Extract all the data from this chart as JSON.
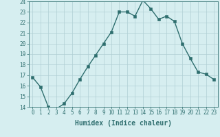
{
  "x": [
    0,
    1,
    2,
    3,
    4,
    5,
    6,
    7,
    8,
    9,
    10,
    11,
    12,
    13,
    14,
    15,
    16,
    17,
    18,
    19,
    20,
    21,
    22,
    23
  ],
  "y": [
    16.8,
    15.9,
    14.0,
    13.8,
    14.3,
    15.3,
    16.6,
    17.8,
    18.9,
    20.0,
    21.1,
    23.0,
    23.0,
    22.6,
    24.1,
    23.3,
    22.3,
    22.6,
    22.1,
    20.0,
    18.6,
    17.3,
    17.1,
    16.6
  ],
  "line_color": "#2e6e6e",
  "marker_color": "#2e6e6e",
  "bg_color": "#d6eef0",
  "grid_color": "#b0cfd4",
  "axis_color": "#2e6e6e",
  "xlabel": "Humidex (Indice chaleur)",
  "ylim": [
    14,
    24
  ],
  "yticks": [
    14,
    15,
    16,
    17,
    18,
    19,
    20,
    21,
    22,
    23,
    24
  ],
  "xticks": [
    0,
    1,
    2,
    3,
    4,
    5,
    6,
    7,
    8,
    9,
    10,
    11,
    12,
    13,
    14,
    15,
    16,
    17,
    18,
    19,
    20,
    21,
    22,
    23
  ],
  "xlabel_fontsize": 7,
  "tick_fontsize": 5.5,
  "marker_size": 2.2,
  "line_width": 1.0
}
